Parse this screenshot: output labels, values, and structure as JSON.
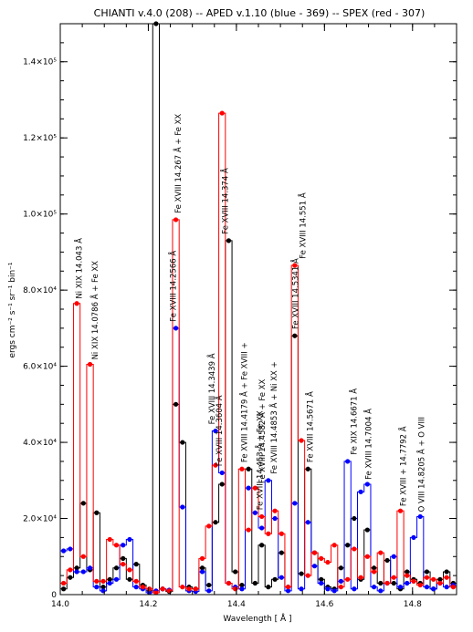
{
  "chart_data": {
    "type": "line",
    "title": "CHIANTI v.4.0 (208) -- APED v.1.10 (blue - 369) -- SPEX (red - 307)",
    "xlabel": "Wavelength [ Å ]",
    "ylabel": "ergs cm⁻² s⁻¹ sr⁻¹ bin⁻¹",
    "xlim": [
      14.0,
      14.9
    ],
    "ylim": [
      0,
      150000
    ],
    "x_ticks": [
      {
        "value": 14.0,
        "label": "14.0"
      },
      {
        "value": 14.2,
        "label": "14.2"
      },
      {
        "value": 14.4,
        "label": "14.4"
      },
      {
        "value": 14.6,
        "label": "14.6"
      },
      {
        "value": 14.8,
        "label": "14.8"
      }
    ],
    "y_ticks": [
      {
        "value": 0,
        "label": "0"
      },
      {
        "value": 20000,
        "label": "2.0×10⁴"
      },
      {
        "value": 40000,
        "label": "4.0×10⁴"
      },
      {
        "value": 60000,
        "label": "6.0×10⁴"
      },
      {
        "value": 80000,
        "label": "8.0×10⁴"
      },
      {
        "value": 100000,
        "label": "1.0×10⁵"
      },
      {
        "value": 120000,
        "label": "1.2×10⁵"
      },
      {
        "value": 140000,
        "label": "1.4×10⁵"
      }
    ],
    "bin_width": 0.015,
    "bins": [
      14.0,
      14.015,
      14.03,
      14.045,
      14.06,
      14.075,
      14.09,
      14.105,
      14.12,
      14.135,
      14.15,
      14.165,
      14.18,
      14.195,
      14.21,
      14.225,
      14.24,
      14.255,
      14.27,
      14.285,
      14.3,
      14.315,
      14.33,
      14.345,
      14.36,
      14.375,
      14.39,
      14.405,
      14.42,
      14.435,
      14.45,
      14.465,
      14.48,
      14.495,
      14.51,
      14.525,
      14.54,
      14.555,
      14.57,
      14.585,
      14.6,
      14.615,
      14.63,
      14.645,
      14.66,
      14.675,
      14.69,
      14.705,
      14.72,
      14.735,
      14.75,
      14.765,
      14.78,
      14.795,
      14.81,
      14.825,
      14.84,
      14.855,
      14.87,
      14.885
    ],
    "series": [
      {
        "name": "CHIANTI v.4.0 (208)",
        "color": "#000000",
        "values": [
          1500,
          4500,
          7000,
          24000,
          6500,
          21500,
          2000,
          4000,
          7000,
          9500,
          4000,
          8000,
          2500,
          1000,
          150000,
          1500,
          800,
          50000,
          40000,
          2000,
          1500,
          7000,
          2500,
          19000,
          29000,
          93000,
          6000,
          2500,
          33000,
          3000,
          13000,
          2000,
          4000,
          11000,
          2000,
          68000,
          5500,
          33000,
          11000,
          4000,
          2000,
          1500,
          7000,
          13000,
          20000,
          4000,
          17000,
          7000,
          3000,
          9000,
          3000,
          1500,
          6000,
          4000,
          3000,
          6000,
          1500,
          4000,
          6000,
          3000
        ]
      },
      {
        "name": "APED v.1.10",
        "color": "#0000ff",
        "values": [
          11500,
          12000,
          6000,
          6000,
          7000,
          2000,
          1000,
          3000,
          4000,
          13000,
          14500,
          2000,
          1500,
          500,
          1000,
          1500,
          1200,
          70000,
          23000,
          1000,
          800,
          6000,
          1000,
          43000,
          32000,
          3000,
          2000,
          1500,
          28000,
          21500,
          17500,
          30000,
          20000,
          4500,
          1000,
          24000,
          1500,
          19000,
          7500,
          3000,
          1500,
          1000,
          3500,
          35000,
          1500,
          27000,
          29000,
          2000,
          1000,
          3000,
          10000,
          2000,
          3000,
          15000,
          20500,
          2000,
          1500,
          3000,
          2000,
          2500
        ]
      },
      {
        "name": "SPEX",
        "color": "#ff0000",
        "values": [
          3000,
          6500,
          76500,
          10000,
          60500,
          3500,
          3500,
          14500,
          13000,
          8000,
          6500,
          3500,
          2000,
          1500,
          500,
          1500,
          1000,
          98500,
          2000,
          1500,
          1500,
          9500,
          18000,
          34000,
          126500,
          3000,
          1500,
          33000,
          17000,
          28000,
          20500,
          16000,
          22000,
          16000,
          2000,
          86500,
          40500,
          5000,
          11000,
          9500,
          8500,
          13000,
          2000,
          4000,
          12000,
          4500,
          10000,
          6000,
          11000,
          3000,
          4500,
          22000,
          5000,
          3500,
          2500,
          4500,
          4000,
          3000,
          4500,
          2000
        ]
      }
    ],
    "annotations": [
      {
        "text": "Ni XIX 14.043 Å",
        "x": 14.043,
        "y": 77000
      },
      {
        "text": "Ni XIX 14.0786 Å + Fe XX",
        "x": 14.0786,
        "y": 61000
      },
      {
        "text": "Fe XVIII 14.2566 Å",
        "x": 14.2566,
        "y": 71000
      },
      {
        "text": "Fe XVIII 14.267 Å + Fe XX",
        "x": 14.267,
        "y": 99500
      },
      {
        "text": "Fe XVIII 14.3439 Å",
        "x": 14.3439,
        "y": 44000
      },
      {
        "text": "Fe XVIII 14.3604 Å",
        "x": 14.3604,
        "y": 33000
      },
      {
        "text": "Fe XVIII 14.374 Å",
        "x": 14.374,
        "y": 94000
      },
      {
        "text": "Fe XVIII 14.4179 Å + Fe XVIII +",
        "x": 14.4179,
        "y": 34000
      },
      {
        "text": "Fe XVIII 14.453 Å + Fe XX",
        "x": 14.453,
        "y": 21500
      },
      {
        "text": "Fe XVIII 14.4582 Å + Fe XX",
        "x": 14.4582,
        "y": 28500
      },
      {
        "text": "Fe XVIII 14.4853 Å + Ni XX +",
        "x": 14.4853,
        "y": 31000
      },
      {
        "text": "Fe XVIII 14.5341 Å",
        "x": 14.5341,
        "y": 69000
      },
      {
        "text": "Fe XVIII 14.551 Å",
        "x": 14.551,
        "y": 87500
      },
      {
        "text": "Fe XVIII 14.5671 Å",
        "x": 14.5671,
        "y": 34000
      },
      {
        "text": "Fe XIX 14.6671 Å",
        "x": 14.6671,
        "y": 36000
      },
      {
        "text": "Fe XVIII 14.7004 Å",
        "x": 14.7004,
        "y": 29500
      },
      {
        "text": "Fe XVIII + 14.7792 Å",
        "x": 14.7792,
        "y": 22500
      },
      {
        "text": "O VIII 14.8205 Å + O VIII",
        "x": 14.8205,
        "y": 21000
      }
    ]
  }
}
